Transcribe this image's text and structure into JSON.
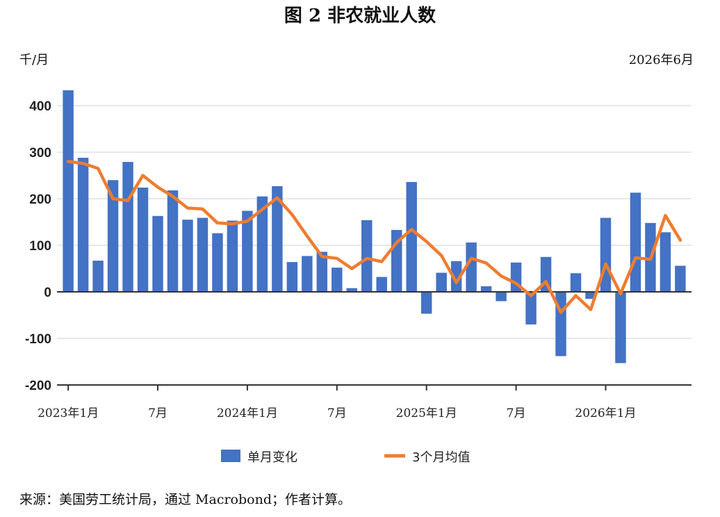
{
  "chart_data": {
    "type": "bar",
    "title": "图 2 非农就业人数",
    "unit_label": "千/月",
    "date_label": "2026年6月",
    "ylim": [
      -200,
      400
    ],
    "y_ticks": [
      -200,
      -100,
      0,
      100,
      200,
      300,
      400
    ],
    "x_tick_labels": [
      {
        "index": 0,
        "label": "2023年1月"
      },
      {
        "index": 6,
        "label": "7月"
      },
      {
        "index": 12,
        "label": "2024年1月"
      },
      {
        "index": 18,
        "label": "7月"
      },
      {
        "index": 24,
        "label": "2025年1月"
      },
      {
        "index": 30,
        "label": "7月"
      },
      {
        "index": 36,
        "label": "2026年1月"
      }
    ],
    "grid": true,
    "legend_position": "bottom",
    "series": [
      {
        "name": "单月变化",
        "type": "bar",
        "color": "#4472C4",
        "values": [
          433,
          288,
          67,
          240,
          279,
          224,
          163,
          218,
          155,
          159,
          126,
          153,
          174,
          205,
          227,
          64,
          77,
          86,
          52,
          8,
          154,
          32,
          133,
          236,
          -47,
          41,
          66,
          106,
          12,
          -20,
          63,
          -70,
          75,
          -138,
          40,
          -15,
          159,
          -153,
          213,
          148,
          128,
          56
        ]
      },
      {
        "name": "3个月均值",
        "type": "line",
        "color": "#ED7D31",
        "values": [
          280,
          276,
          265,
          200,
          196,
          250,
          225,
          205,
          180,
          178,
          148,
          146,
          152,
          177,
          202,
          166,
          120,
          76,
          72,
          50,
          72,
          65,
          106,
          134,
          108,
          78,
          20,
          72,
          62,
          34,
          18,
          -8,
          22,
          -44,
          -8,
          -38,
          60,
          -4,
          73,
          70,
          164,
          111
        ]
      }
    ]
  },
  "source_note": "来源：美国劳工统计局，通过 Macrobond；作者计算。"
}
